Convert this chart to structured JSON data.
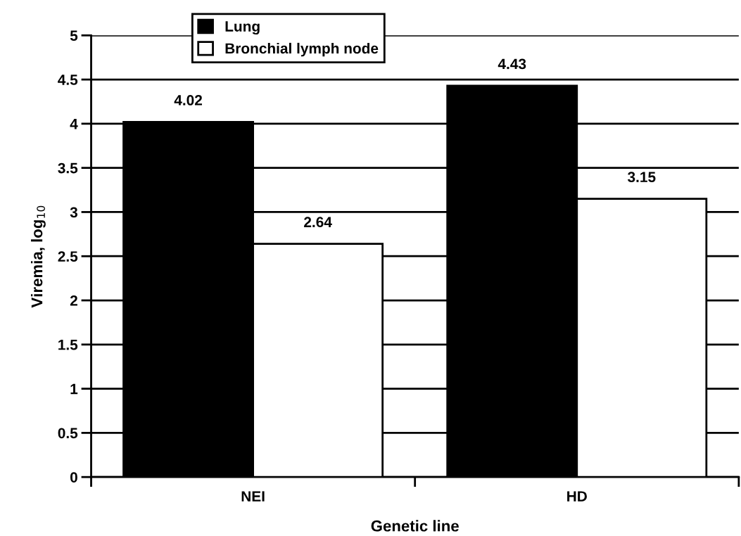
{
  "chart_data": {
    "type": "bar",
    "xlabel": "Genetic line",
    "ylabel": "Viremia, log$_{10}$",
    "categories": [
      "NEI",
      "HD"
    ],
    "series": [
      {
        "name": "Lung",
        "color": "#000000",
        "values": [
          4.02,
          4.43
        ]
      },
      {
        "name": "Bronchial lymph node",
        "color": "#ffffff",
        "values": [
          2.64,
          3.15
        ]
      }
    ],
    "ylim": [
      0,
      5
    ],
    "yticks": [
      0,
      0.5,
      1,
      1.5,
      2,
      2.5,
      3,
      3.5,
      4,
      4.5,
      5
    ],
    "grid": "y",
    "legend": "top left",
    "data_labels": true
  }
}
